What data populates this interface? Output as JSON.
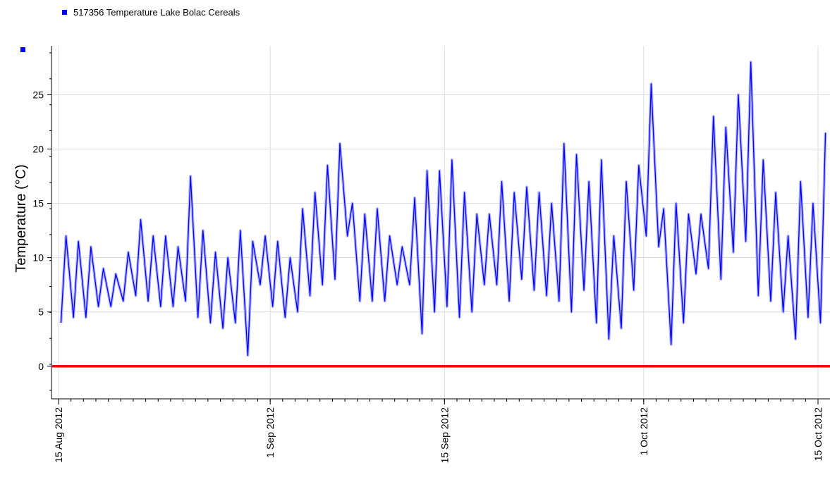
{
  "chart_data": {
    "type": "line",
    "legend_title": "517356  Temperature Lake Bolac Cereals",
    "y_label": "Temperature (°C)",
    "x": [
      "2012-08-15",
      "2012-08-16",
      "2012-08-17",
      "2012-08-18",
      "2012-08-19",
      "2012-08-20",
      "2012-08-21",
      "2012-08-22",
      "2012-08-23",
      "2012-08-24",
      "2012-08-25",
      "2012-08-26",
      "2012-08-27",
      "2012-08-28",
      "2012-08-29",
      "2012-08-30",
      "2012-08-31",
      "2012-09-01",
      "2012-09-02",
      "2012-09-03",
      "2012-09-04",
      "2012-09-05",
      "2012-09-06",
      "2012-09-07",
      "2012-09-08",
      "2012-09-09",
      "2012-09-10",
      "2012-09-11",
      "2012-09-12",
      "2012-09-13",
      "2012-09-14",
      "2012-09-15",
      "2012-09-16",
      "2012-09-17",
      "2012-09-18",
      "2012-09-19",
      "2012-09-20",
      "2012-09-21",
      "2012-09-22",
      "2012-09-23",
      "2012-09-24",
      "2012-09-25",
      "2012-09-26",
      "2012-09-27",
      "2012-09-28",
      "2012-09-29",
      "2012-09-30",
      "2012-10-01",
      "2012-10-02",
      "2012-10-03",
      "2012-10-04",
      "2012-10-05",
      "2012-10-06",
      "2012-10-07",
      "2012-10-08",
      "2012-10-09",
      "2012-10-10",
      "2012-10-11",
      "2012-10-12",
      "2012-10-13",
      "2012-10-14",
      "2012-10-15"
    ],
    "series": [
      {
        "name": "517356  Temperature Lake Bolac Cereals",
        "color": "#0000ff",
        "band_color": "#b8b8f0",
        "low": [
          4,
          4.5,
          4.5,
          5.5,
          5.5,
          6,
          6.5,
          6,
          5.5,
          5.5,
          6,
          4.5,
          4,
          3.5,
          4,
          1,
          7.5,
          5.5,
          4.5,
          5,
          6.5,
          7.5,
          8,
          12,
          6,
          6,
          6,
          7.5,
          7.5,
          3,
          5,
          5.5,
          4.5,
          5,
          7.5,
          7.5,
          6,
          8,
          7,
          6.5,
          6,
          5,
          7,
          4,
          2.5,
          3.5,
          7,
          12,
          11,
          2,
          4,
          8.5,
          9,
          8,
          10.5,
          11.5,
          6.5,
          6,
          5,
          2.5,
          4.5,
          4
        ],
        "values": [
          12,
          11.5,
          11,
          9,
          8.5,
          10.5,
          13.5,
          12,
          12,
          11,
          17.5,
          12.5,
          10.5,
          10,
          12.5,
          11.5,
          12,
          11.5,
          10,
          14.5,
          16,
          18.5,
          20.5,
          15,
          14,
          14.5,
          12,
          11,
          15.5,
          18,
          18,
          19,
          16,
          14,
          14,
          17,
          16,
          16.5,
          16,
          15,
          20.5,
          19.5,
          17,
          19,
          12,
          17,
          18.5,
          26,
          14.5,
          15,
          14,
          14,
          23,
          22,
          25,
          28,
          19,
          16,
          12,
          17,
          15,
          21.5
        ]
      }
    ],
    "xlim": [
      "2012-08-15",
      "2012-10-15"
    ],
    "xticks": [
      {
        "value": "2012-08-15",
        "label": "15 Aug 2012"
      },
      {
        "value": "2012-09-01",
        "label": "1 Sep 2012"
      },
      {
        "value": "2012-09-15",
        "label": "15 Sep 2012"
      },
      {
        "value": "2012-10-01",
        "label": "1 Oct 2012"
      },
      {
        "value": "2012-10-15",
        "label": "15 Oct 2012"
      }
    ],
    "ylim": [
      -3,
      29.5
    ],
    "yticks": [
      0,
      5,
      10,
      15,
      20,
      25
    ],
    "reference_line": {
      "value": 0,
      "color": "#ff0000"
    },
    "grid": true
  }
}
